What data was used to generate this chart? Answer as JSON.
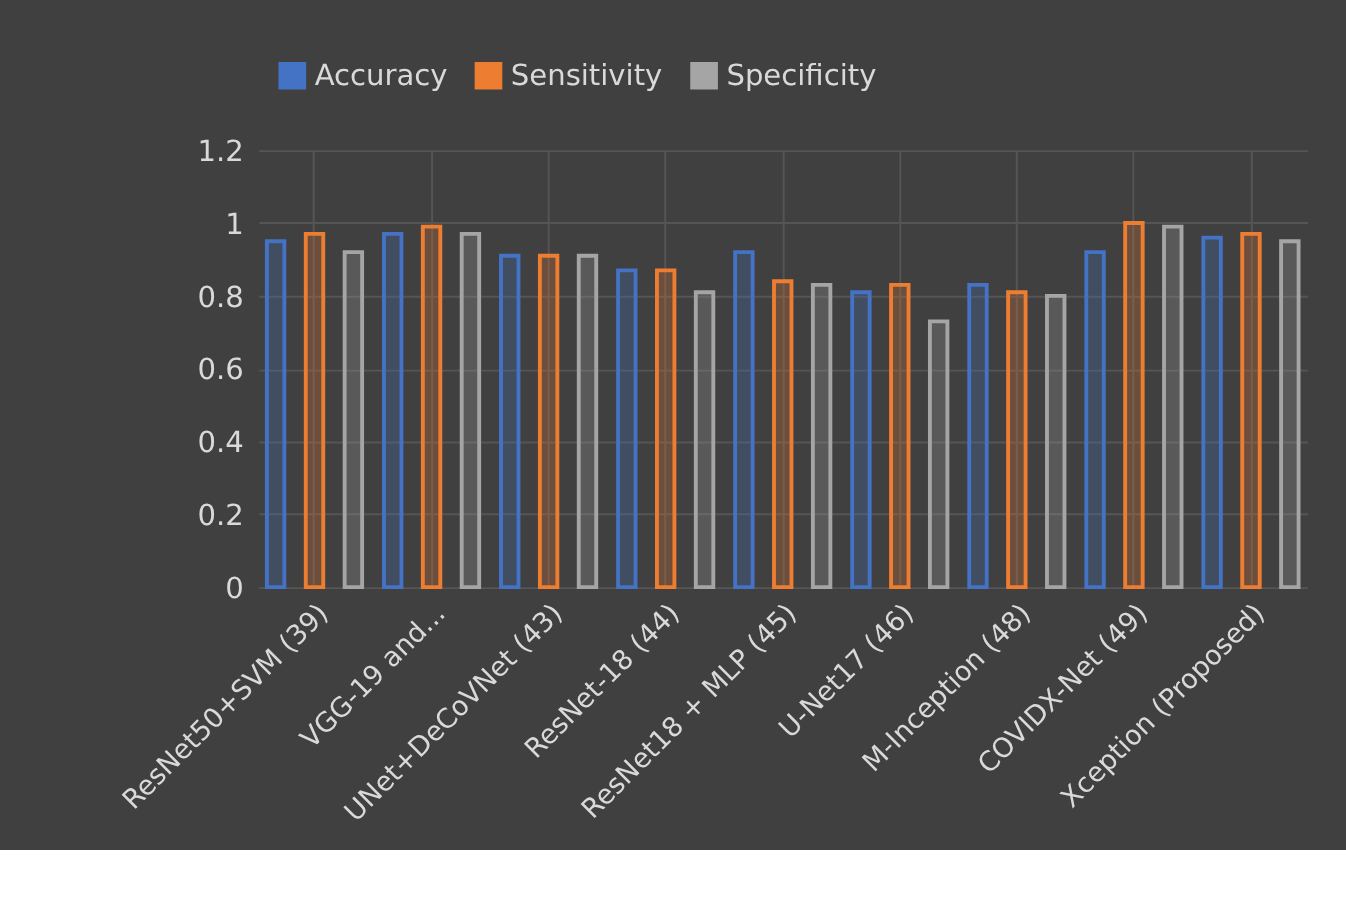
{
  "chart_data": {
    "type": "bar",
    "categories": [
      "ResNet50+SVM (39)",
      "VGG-19 and...",
      "UNet+DeCoVNet (43)",
      "ResNet-18 (44)",
      "ResNet18 + MLP (45)",
      "U-Net17 (46)",
      "M-Inception (48)",
      "COVIDX-Net (49)",
      "Xception (Proposed)"
    ],
    "series": [
      {
        "name": "Accuracy",
        "color": "#4472c4",
        "values": [
          0.95,
          0.97,
          0.91,
          0.87,
          0.92,
          0.81,
          0.83,
          0.92,
          0.96
        ]
      },
      {
        "name": "Sensitivity",
        "color": "#ed7d31",
        "values": [
          0.97,
          0.99,
          0.91,
          0.87,
          0.84,
          0.83,
          0.81,
          1.0,
          0.97
        ]
      },
      {
        "name": "Specificity",
        "color": "#a5a5a5",
        "values": [
          0.92,
          0.97,
          0.91,
          0.81,
          0.83,
          0.73,
          0.8,
          0.99,
          0.95
        ]
      }
    ],
    "ylim": [
      0,
      1.2
    ],
    "yticks": [
      0,
      0.2,
      0.4,
      0.6,
      0.8,
      1,
      1.2
    ],
    "grid": true,
    "legend": "top"
  }
}
